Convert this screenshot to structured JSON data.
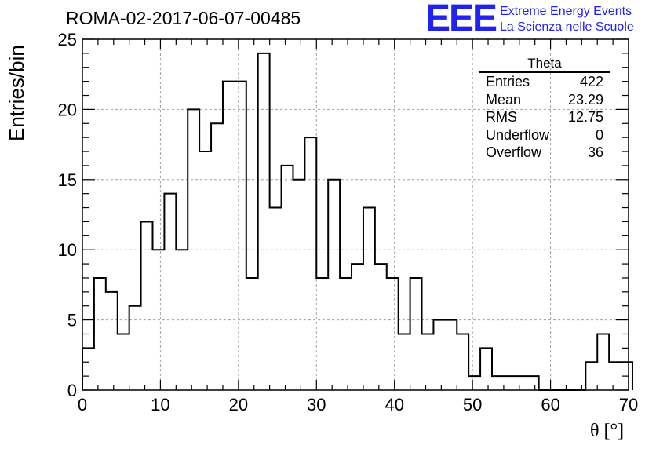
{
  "header": {
    "title": "ROMA-02-2017-06-07-00485",
    "logo_text": "EEE",
    "logo_line1": "Extreme Energy Events",
    "logo_line2": "La Scienza nelle Scuole"
  },
  "stats_box": {
    "title": "Theta",
    "rows": [
      {
        "label": "Entries",
        "value": "422"
      },
      {
        "label": "Mean",
        "value": "23.29"
      },
      {
        "label": "RMS",
        "value": "12.75"
      },
      {
        "label": "Underflow",
        "value": "0"
      },
      {
        "label": "Overflow",
        "value": "36"
      }
    ]
  },
  "colors": {
    "line": "#000000",
    "grid": "#a0a0a0",
    "logo": "#2222ee"
  },
  "chart_data": {
    "type": "histogram",
    "xlabel": "θ [°]",
    "ylabel": "Entries/bin",
    "xlim": [
      0,
      70
    ],
    "ylim": [
      0,
      25
    ],
    "grid": true,
    "bin_width": 1.5,
    "bin_edges_start": 0,
    "x_ticks": [
      0,
      10,
      20,
      30,
      40,
      50,
      60,
      70
    ],
    "y_ticks": [
      0,
      5,
      10,
      15,
      20,
      25
    ],
    "values": [
      3,
      8,
      7,
      4,
      6,
      12,
      10,
      14,
      10,
      20,
      17,
      19,
      22,
      22,
      8,
      24,
      13,
      16,
      15,
      18,
      8,
      15,
      8,
      9,
      13,
      9,
      8,
      4,
      8,
      4,
      5,
      5,
      4,
      1,
      3,
      1,
      1,
      1,
      1,
      0,
      0,
      0,
      0,
      2,
      4,
      2,
      2
    ]
  }
}
